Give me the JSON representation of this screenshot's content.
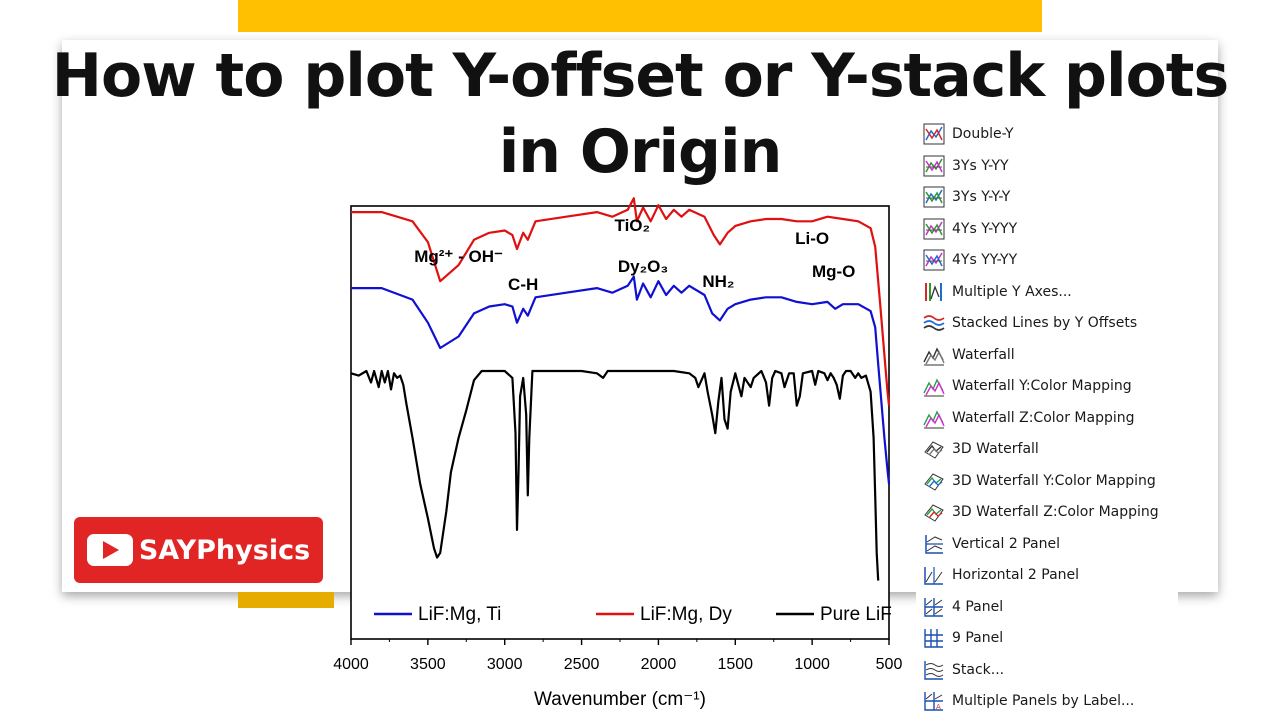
{
  "title": {
    "line1": "How to plot Y-offset or Y-stack plots",
    "line2": "in Origin"
  },
  "logo": {
    "text": "SAYPhysics"
  },
  "chart_data": {
    "type": "line",
    "xlabel": "Wavenumber (cm⁻¹)",
    "xlim": [
      4000,
      500
    ],
    "x_ticks": [
      4000,
      3500,
      3000,
      2500,
      2000,
      1500,
      1000,
      500
    ],
    "annotations": [
      {
        "text": "Mg²⁺ - OH⁻",
        "x": 3300
      },
      {
        "text": "C-H",
        "x": 2880
      },
      {
        "text": "TiO₂",
        "x": 2170
      },
      {
        "text": "Dy₂O₃",
        "x": 2100
      },
      {
        "text": "NH₂",
        "x": 1610
      },
      {
        "text": "Li-O",
        "x": 1000
      },
      {
        "text": "Mg-O",
        "x": 860
      }
    ],
    "legend": {
      "placement": "bottom",
      "entries": [
        "LiF:Mg, Ti",
        "LiF:Mg, Dy",
        "Pure LiF"
      ]
    },
    "series": [
      {
        "name": "LiF:Mg, Dy",
        "color": "#e01010",
        "offset": 70,
        "points": [
          [
            4000,
            98
          ],
          [
            3800,
            98
          ],
          [
            3600,
            94
          ],
          [
            3500,
            85
          ],
          [
            3420,
            68
          ],
          [
            3300,
            75
          ],
          [
            3200,
            86
          ],
          [
            3100,
            89
          ],
          [
            3000,
            90
          ],
          [
            2950,
            88
          ],
          [
            2920,
            82
          ],
          [
            2880,
            89
          ],
          [
            2850,
            86
          ],
          [
            2800,
            94
          ],
          [
            2600,
            96
          ],
          [
            2400,
            98
          ],
          [
            2300,
            96
          ],
          [
            2200,
            99
          ],
          [
            2160,
            104
          ],
          [
            2140,
            94
          ],
          [
            2100,
            100
          ],
          [
            2050,
            94
          ],
          [
            2000,
            101
          ],
          [
            1950,
            95
          ],
          [
            1900,
            99
          ],
          [
            1850,
            96
          ],
          [
            1800,
            99
          ],
          [
            1700,
            96
          ],
          [
            1640,
            88
          ],
          [
            1600,
            84
          ],
          [
            1550,
            89
          ],
          [
            1500,
            92
          ],
          [
            1400,
            94
          ],
          [
            1300,
            95
          ],
          [
            1200,
            95
          ],
          [
            1100,
            94
          ],
          [
            1000,
            94
          ],
          [
            900,
            96
          ],
          [
            800,
            95
          ],
          [
            700,
            94
          ],
          [
            620,
            91
          ],
          [
            590,
            83
          ],
          [
            560,
            60
          ],
          [
            530,
            36
          ],
          [
            510,
            20
          ],
          [
            500,
            14
          ]
        ]
      },
      {
        "name": "LiF:Mg, Ti",
        "color": "#1010d0",
        "offset": 40,
        "points": [
          [
            4000,
            95
          ],
          [
            3800,
            95
          ],
          [
            3600,
            90
          ],
          [
            3500,
            80
          ],
          [
            3420,
            69
          ],
          [
            3300,
            74
          ],
          [
            3200,
            84
          ],
          [
            3100,
            87
          ],
          [
            3000,
            88
          ],
          [
            2950,
            87
          ],
          [
            2920,
            80
          ],
          [
            2880,
            86
          ],
          [
            2850,
            83
          ],
          [
            2800,
            91
          ],
          [
            2600,
            93
          ],
          [
            2400,
            95
          ],
          [
            2300,
            93
          ],
          [
            2200,
            96
          ],
          [
            2160,
            100
          ],
          [
            2140,
            90
          ],
          [
            2100,
            97
          ],
          [
            2050,
            91
          ],
          [
            2000,
            98
          ],
          [
            1950,
            92
          ],
          [
            1900,
            96
          ],
          [
            1850,
            93
          ],
          [
            1800,
            96
          ],
          [
            1700,
            92
          ],
          [
            1650,
            84
          ],
          [
            1600,
            81
          ],
          [
            1550,
            86
          ],
          [
            1500,
            88
          ],
          [
            1400,
            90
          ],
          [
            1300,
            91
          ],
          [
            1200,
            91
          ],
          [
            1100,
            89
          ],
          [
            1000,
            88
          ],
          [
            900,
            89
          ],
          [
            850,
            86
          ],
          [
            800,
            88
          ],
          [
            700,
            88
          ],
          [
            620,
            85
          ],
          [
            590,
            78
          ],
          [
            570,
            62
          ],
          [
            550,
            46
          ],
          [
            530,
            30
          ],
          [
            510,
            16
          ],
          [
            500,
            10
          ]
        ]
      },
      {
        "name": "Pure LiF",
        "color": "#000000",
        "offset": 0,
        "points": [
          [
            4000,
            98
          ],
          [
            3950,
            97
          ],
          [
            3900,
            99
          ],
          [
            3870,
            94
          ],
          [
            3850,
            99
          ],
          [
            3820,
            92
          ],
          [
            3800,
            99
          ],
          [
            3780,
            94
          ],
          [
            3760,
            99
          ],
          [
            3740,
            91
          ],
          [
            3720,
            98
          ],
          [
            3700,
            96
          ],
          [
            3680,
            97
          ],
          [
            3660,
            93
          ],
          [
            3640,
            85
          ],
          [
            3600,
            70
          ],
          [
            3550,
            50
          ],
          [
            3500,
            35
          ],
          [
            3460,
            22
          ],
          [
            3440,
            18
          ],
          [
            3420,
            20
          ],
          [
            3380,
            38
          ],
          [
            3350,
            55
          ],
          [
            3300,
            70
          ],
          [
            3250,
            82
          ],
          [
            3200,
            95
          ],
          [
            3150,
            99
          ],
          [
            3100,
            99
          ],
          [
            3000,
            99
          ],
          [
            2950,
            96
          ],
          [
            2930,
            72
          ],
          [
            2920,
            30
          ],
          [
            2910,
            55
          ],
          [
            2900,
            88
          ],
          [
            2880,
            96
          ],
          [
            2860,
            80
          ],
          [
            2850,
            45
          ],
          [
            2840,
            70
          ],
          [
            2820,
            99
          ],
          [
            2700,
            99
          ],
          [
            2500,
            99
          ],
          [
            2400,
            98
          ],
          [
            2360,
            96
          ],
          [
            2330,
            99
          ],
          [
            2100,
            99
          ],
          [
            1900,
            99
          ],
          [
            1800,
            98
          ],
          [
            1760,
            96
          ],
          [
            1740,
            92
          ],
          [
            1700,
            98
          ],
          [
            1680,
            90
          ],
          [
            1650,
            80
          ],
          [
            1630,
            72
          ],
          [
            1610,
            86
          ],
          [
            1590,
            96
          ],
          [
            1570,
            78
          ],
          [
            1550,
            74
          ],
          [
            1530,
            90
          ],
          [
            1500,
            98
          ],
          [
            1460,
            88
          ],
          [
            1440,
            96
          ],
          [
            1400,
            92
          ],
          [
            1380,
            96
          ],
          [
            1330,
            99
          ],
          [
            1300,
            94
          ],
          [
            1280,
            84
          ],
          [
            1260,
            96
          ],
          [
            1240,
            99
          ],
          [
            1200,
            98
          ],
          [
            1180,
            92
          ],
          [
            1150,
            98
          ],
          [
            1120,
            98
          ],
          [
            1100,
            84
          ],
          [
            1080,
            88
          ],
          [
            1060,
            98
          ],
          [
            1000,
            99
          ],
          [
            980,
            93
          ],
          [
            960,
            99
          ],
          [
            920,
            98
          ],
          [
            900,
            95
          ],
          [
            880,
            98
          ],
          [
            860,
            96
          ],
          [
            840,
            93
          ],
          [
            820,
            87
          ],
          [
            800,
            97
          ],
          [
            780,
            99
          ],
          [
            750,
            99
          ],
          [
            720,
            96
          ],
          [
            700,
            98
          ],
          [
            680,
            96
          ],
          [
            650,
            97
          ],
          [
            620,
            90
          ],
          [
            600,
            70
          ],
          [
            590,
            45
          ],
          [
            580,
            20
          ],
          [
            570,
            8
          ]
        ]
      }
    ]
  },
  "menu": {
    "items": [
      {
        "label": "Double-Y",
        "icon": "double-y-icon"
      },
      {
        "label": "3Ys Y-YY",
        "icon": "three-ys-y-yy-icon"
      },
      {
        "label": "3Ys Y-Y-Y",
        "icon": "three-ys-y-y-y-icon"
      },
      {
        "label": "4Ys Y-YYY",
        "icon": "four-ys-y-yyy-icon"
      },
      {
        "label": "4Ys YY-YY",
        "icon": "four-ys-yy-yy-icon"
      },
      {
        "label": "Multiple Y Axes...",
        "icon": "multiple-y-axes-icon"
      },
      {
        "label": "Stacked Lines by Y Offsets",
        "icon": "stacked-lines-icon"
      },
      {
        "label": "Waterfall",
        "icon": "waterfall-icon"
      },
      {
        "label": "Waterfall Y:Color Mapping",
        "icon": "waterfall-y-color-icon"
      },
      {
        "label": "Waterfall Z:Color Mapping",
        "icon": "waterfall-z-color-icon"
      },
      {
        "label": "3D Waterfall",
        "icon": "3d-waterfall-icon"
      },
      {
        "label": "3D Waterfall Y:Color Mapping",
        "icon": "3d-waterfall-y-color-icon"
      },
      {
        "label": "3D Waterfall Z:Color Mapping",
        "icon": "3d-waterfall-z-color-icon"
      },
      {
        "label": "Vertical 2 Panel",
        "icon": "vertical-2-panel-icon"
      },
      {
        "label": "Horizontal 2 Panel",
        "icon": "horizontal-2-panel-icon"
      },
      {
        "label": "4 Panel",
        "icon": "4-panel-icon"
      },
      {
        "label": "9 Panel",
        "icon": "9-panel-icon"
      },
      {
        "label": "Stack...",
        "icon": "stack-icon"
      },
      {
        "label": "Multiple Panels by Label...",
        "icon": "multiple-panels-icon"
      }
    ]
  }
}
